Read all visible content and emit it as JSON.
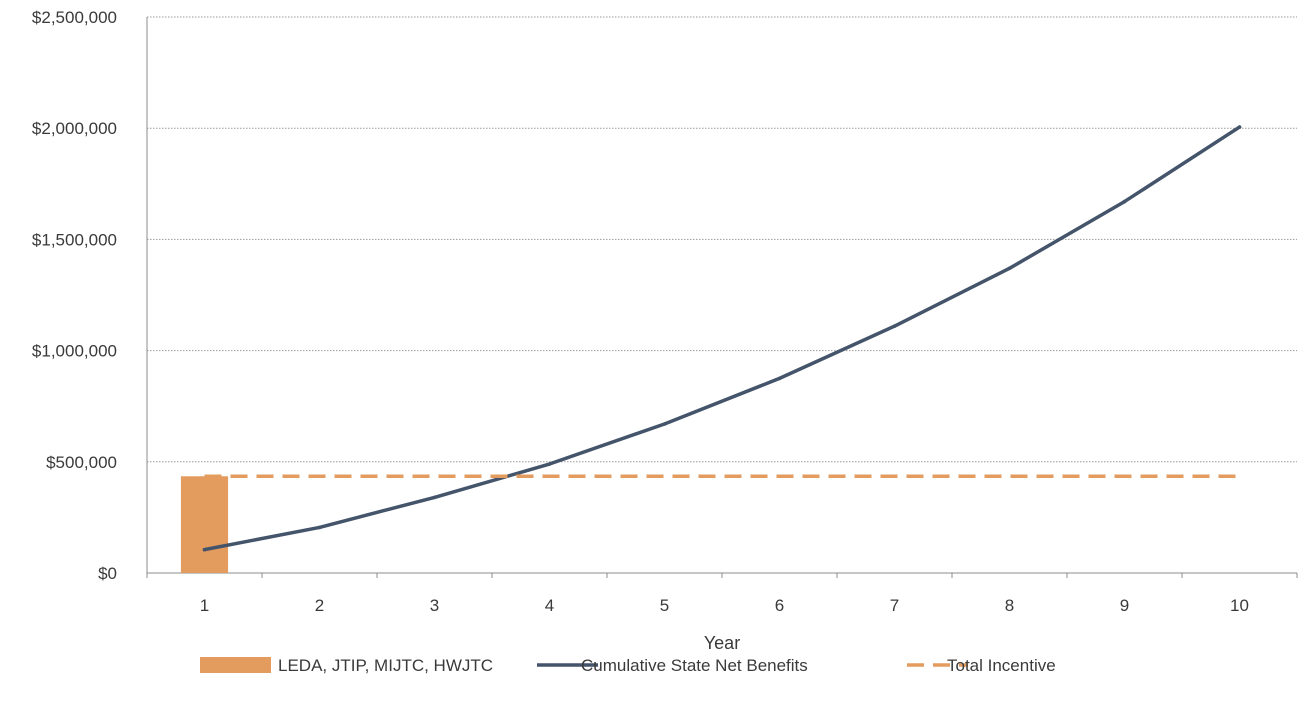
{
  "chart_data": {
    "type": "bar",
    "xlabel": "Year",
    "ylabel": "",
    "title": "",
    "ylim": [
      0,
      2500000
    ],
    "y_ticks": [
      "$0",
      "$500,000",
      "$1,000,000",
      "$1,500,000",
      "$2,000,000",
      "$2,500,000"
    ],
    "y_tick_values": [
      0,
      500000,
      1000000,
      1500000,
      2000000,
      2500000
    ],
    "categories": [
      "1",
      "2",
      "3",
      "4",
      "5",
      "6",
      "7",
      "8",
      "9",
      "10"
    ],
    "grid": true,
    "legend_position": "bottom",
    "series": [
      {
        "name": "LEDA, JTIP, MIJTC, HWJTC",
        "kind": "bar",
        "color": "#E39C5E",
        "values": [
          435000,
          null,
          null,
          null,
          null,
          null,
          null,
          null,
          null,
          null
        ]
      },
      {
        "name": "Cumulative State Net Benefits",
        "kind": "line",
        "color": "#44546A",
        "values": [
          105000,
          205000,
          340000,
          490000,
          670000,
          875000,
          1110000,
          1370000,
          1670000,
          2005000
        ]
      },
      {
        "name": "Total Incentive",
        "kind": "dashed-line",
        "color": "#E39C5E",
        "values": [
          435000,
          435000,
          435000,
          435000,
          435000,
          435000,
          435000,
          435000,
          435000,
          435000
        ]
      }
    ]
  }
}
